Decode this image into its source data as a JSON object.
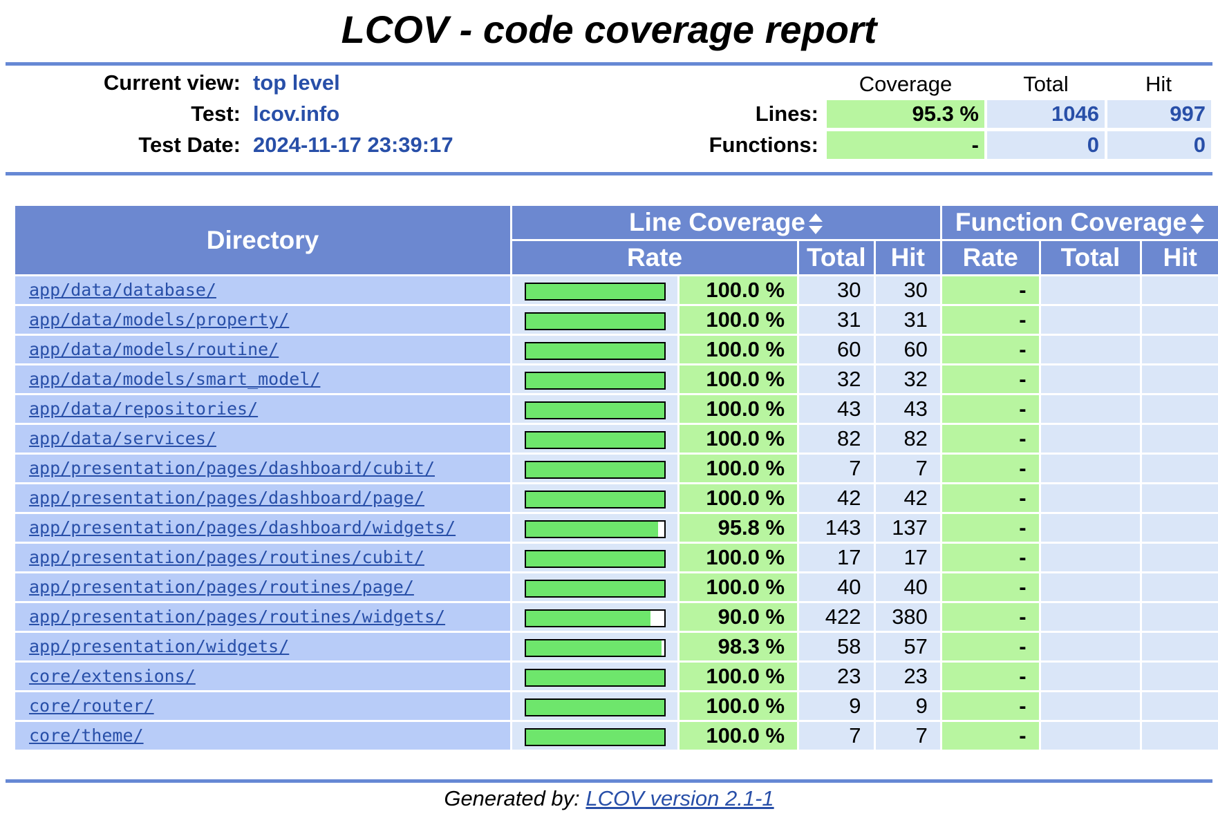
{
  "title": "LCOV - code coverage report",
  "info": {
    "current_view_label": "Current view:",
    "current_view_value": "top level",
    "test_label": "Test:",
    "test_value": "lcov.info",
    "test_date_label": "Test Date:",
    "test_date_value": "2024-11-17 23:39:17"
  },
  "summary": {
    "coverage_head": "Coverage",
    "total_head": "Total",
    "hit_head": "Hit",
    "lines_label": "Lines:",
    "lines_coverage": "95.3 %",
    "lines_total": "1046",
    "lines_hit": "997",
    "functions_label": "Functions:",
    "functions_coverage": "-",
    "functions_total": "0",
    "functions_hit": "0"
  },
  "table": {
    "directory_head": "Directory",
    "line_coverage_head": "Line Coverage",
    "function_coverage_head": "Function Coverage",
    "rate_head": "Rate",
    "total_head": "Total",
    "hit_head": "Hit",
    "fn_rate_head": "Rate",
    "fn_total_head": "Total",
    "fn_hit_head": "Hit",
    "rows": [
      {
        "dir": "app/data/database/",
        "fill": 1.0,
        "rate": "100.0 %",
        "total": "30",
        "hit": "30",
        "fn_rate": "-"
      },
      {
        "dir": "app/data/models/property/",
        "fill": 1.0,
        "rate": "100.0 %",
        "total": "31",
        "hit": "31",
        "fn_rate": "-"
      },
      {
        "dir": "app/data/models/routine/",
        "fill": 1.0,
        "rate": "100.0 %",
        "total": "60",
        "hit": "60",
        "fn_rate": "-"
      },
      {
        "dir": "app/data/models/smart_model/",
        "fill": 1.0,
        "rate": "100.0 %",
        "total": "32",
        "hit": "32",
        "fn_rate": "-"
      },
      {
        "dir": "app/data/repositories/",
        "fill": 1.0,
        "rate": "100.0 %",
        "total": "43",
        "hit": "43",
        "fn_rate": "-"
      },
      {
        "dir": "app/data/services/",
        "fill": 1.0,
        "rate": "100.0 %",
        "total": "82",
        "hit": "82",
        "fn_rate": "-"
      },
      {
        "dir": "app/presentation/pages/dashboard/cubit/",
        "fill": 1.0,
        "rate": "100.0 %",
        "total": "7",
        "hit": "7",
        "fn_rate": "-"
      },
      {
        "dir": "app/presentation/pages/dashboard/page/",
        "fill": 1.0,
        "rate": "100.0 %",
        "total": "42",
        "hit": "42",
        "fn_rate": "-"
      },
      {
        "dir": "app/presentation/pages/dashboard/widgets/",
        "fill": 0.958,
        "rate": "95.8 %",
        "total": "143",
        "hit": "137",
        "fn_rate": "-"
      },
      {
        "dir": "app/presentation/pages/routines/cubit/",
        "fill": 1.0,
        "rate": "100.0 %",
        "total": "17",
        "hit": "17",
        "fn_rate": "-"
      },
      {
        "dir": "app/presentation/pages/routines/page/",
        "fill": 1.0,
        "rate": "100.0 %",
        "total": "40",
        "hit": "40",
        "fn_rate": "-"
      },
      {
        "dir": "app/presentation/pages/routines/widgets/",
        "fill": 0.9,
        "rate": "90.0 %",
        "total": "422",
        "hit": "380",
        "fn_rate": "-"
      },
      {
        "dir": "app/presentation/widgets/",
        "fill": 0.983,
        "rate": "98.3 %",
        "total": "58",
        "hit": "57",
        "fn_rate": "-"
      },
      {
        "dir": "core/extensions/",
        "fill": 1.0,
        "rate": "100.0 %",
        "total": "23",
        "hit": "23",
        "fn_rate": "-"
      },
      {
        "dir": "core/router/",
        "fill": 1.0,
        "rate": "100.0 %",
        "total": "9",
        "hit": "9",
        "fn_rate": "-"
      },
      {
        "dir": "core/theme/",
        "fill": 1.0,
        "rate": "100.0 %",
        "total": "7",
        "hit": "7",
        "fn_rate": "-"
      }
    ]
  },
  "footer": {
    "prefix": "Generated by:",
    "link": "LCOV version 2.1-1"
  }
}
